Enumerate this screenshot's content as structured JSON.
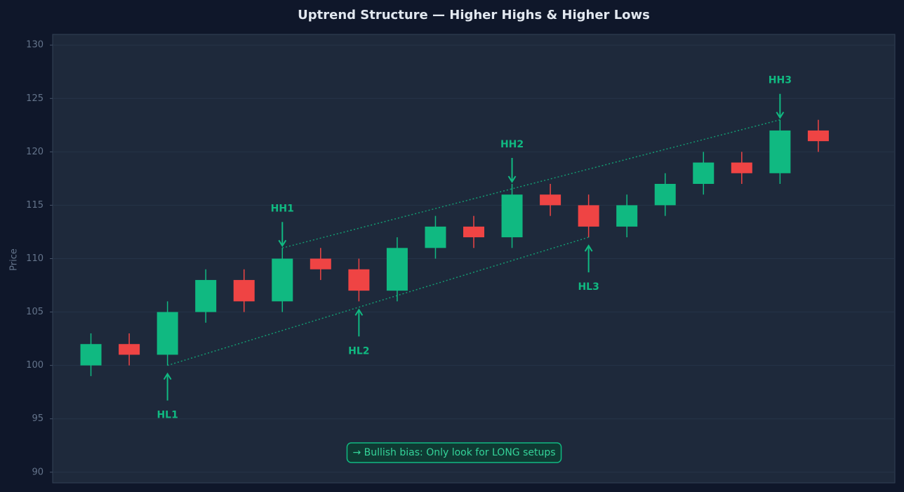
{
  "chart_data": {
    "type": "candlestick",
    "title": "Uptrend Structure — Higher Highs & Higher Lows",
    "y_label": "Price",
    "x": [
      0,
      1,
      2,
      3,
      4,
      5,
      6,
      7,
      8,
      9,
      10,
      11,
      12,
      13,
      14,
      15,
      16,
      17,
      18,
      19
    ],
    "open": [
      100,
      102,
      101,
      105,
      108,
      106,
      110,
      109,
      107,
      111,
      113,
      112,
      116,
      115,
      113,
      115,
      117,
      119,
      118,
      122
    ],
    "high": [
      103,
      103,
      106,
      109,
      109,
      111,
      111,
      110,
      112,
      114,
      114,
      117,
      117,
      116,
      116,
      118,
      120,
      120,
      123,
      123
    ],
    "low": [
      99,
      100,
      100,
      104,
      105,
      105,
      108,
      106,
      106,
      110,
      111,
      111,
      114,
      112,
      112,
      114,
      116,
      117,
      117,
      120
    ],
    "close": [
      102,
      101,
      105,
      108,
      106,
      110,
      109,
      107,
      111,
      113,
      112,
      116,
      115,
      113,
      115,
      117,
      119,
      118,
      122,
      121
    ],
    "up_color": "#10b981",
    "down_color": "#ef4444",
    "xlim": [
      -1,
      21
    ],
    "ylim": [
      89,
      131
    ],
    "yticks": [
      90,
      95,
      100,
      105,
      110,
      115,
      120,
      125,
      130
    ],
    "grid": true,
    "trendlines": [
      {
        "x": [
          5,
          18
        ],
        "y": [
          111,
          123
        ]
      },
      {
        "x": [
          2,
          13
        ],
        "y": [
          100,
          112
        ]
      }
    ],
    "annotation_color": "#10b981",
    "swing_highs": [
      {
        "label": "HH1",
        "x": 5,
        "y": 111
      },
      {
        "label": "HH2",
        "x": 11,
        "y": 117
      },
      {
        "label": "HH3",
        "x": 18,
        "y": 123
      }
    ],
    "swing_lows": [
      {
        "label": "HL1",
        "x": 2,
        "y": 100
      },
      {
        "label": "HL2",
        "x": 7,
        "y": 106
      },
      {
        "label": "HL3",
        "x": 13,
        "y": 112
      }
    ],
    "note": "→  Bullish bias: Only look for LONG setups"
  }
}
